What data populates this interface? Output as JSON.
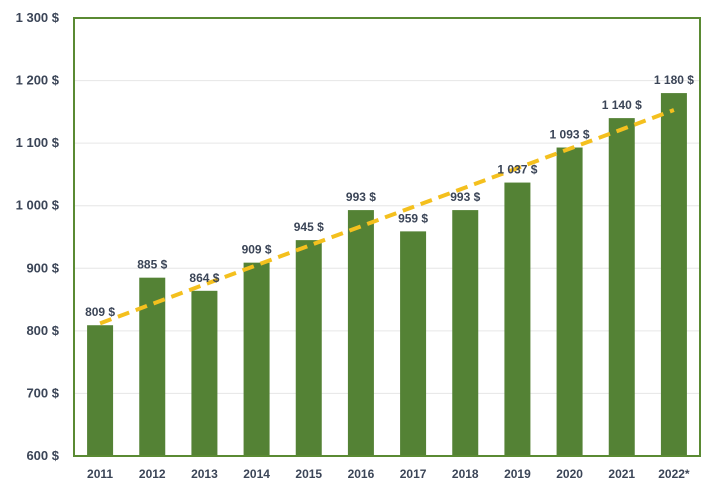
{
  "chart_data": {
    "type": "bar",
    "title": "",
    "xlabel": "",
    "ylabel": "",
    "categories": [
      "2011",
      "2012",
      "2013",
      "2014",
      "2015",
      "2016",
      "2017",
      "2018",
      "2019",
      "2020",
      "2021",
      "2022*"
    ],
    "values": [
      809,
      885,
      864,
      909,
      945,
      993,
      959,
      993,
      1037,
      1093,
      1140,
      1180
    ],
    "data_labels": [
      "809 $",
      "885 $",
      "864 $",
      "909 $",
      "945 $",
      "993 $",
      "959 $",
      "993 $",
      "1 037 $",
      "1 093 $",
      "1 140 $",
      "1 180 $"
    ],
    "ylim": [
      600,
      1300
    ],
    "yticks": [
      600,
      700,
      800,
      900,
      1000,
      1100,
      1200,
      1300
    ],
    "ytick_labels": [
      "600 $",
      "700 $",
      "800 $",
      "900 $",
      "1 000 $",
      "1 100 $",
      "1 200 $",
      "1 300 $"
    ],
    "grid": true,
    "trendline": {
      "type": "linear",
      "style": "dashed",
      "start_value": 812,
      "end_value": 1153
    },
    "colors": {
      "bar": "#548235",
      "trendline": "#f4c01e",
      "plot_border": "#5a8a33",
      "gridline": "#e6e6e6",
      "text": "#3b4557"
    }
  }
}
